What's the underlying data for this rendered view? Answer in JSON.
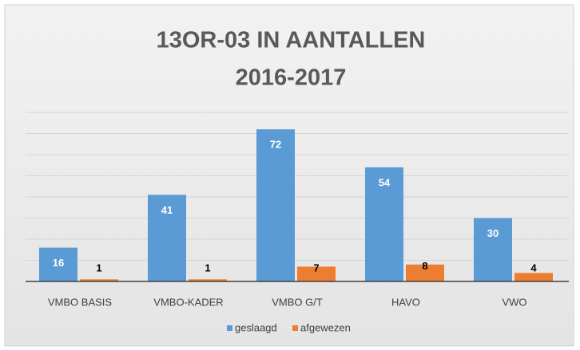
{
  "chart_data": {
    "type": "bar",
    "title": [
      "13OR-03 IN AANTALLEN",
      "2016-2017"
    ],
    "categories": [
      "VMBO BASIS",
      "VMBO-KADER",
      "VMBO G/T",
      "HAVO",
      "VWO"
    ],
    "series": [
      {
        "name": "geslaagd",
        "color": "#5b9bd5",
        "values": [
          16,
          41,
          72,
          54,
          30
        ]
      },
      {
        "name": "afgewezen",
        "color": "#ed7d31",
        "values": [
          1,
          1,
          7,
          8,
          4
        ]
      }
    ],
    "ylim": [
      0,
      80
    ],
    "yticks": [
      0,
      10,
      20,
      30,
      40,
      50,
      60,
      70,
      80
    ],
    "grid": true
  }
}
